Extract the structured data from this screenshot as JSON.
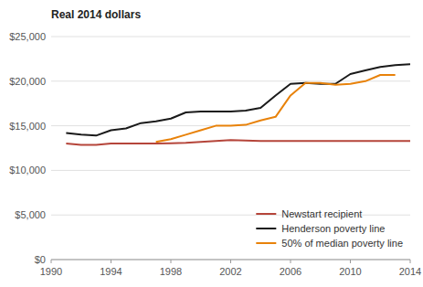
{
  "chart_data": {
    "type": "line",
    "title": "Real 2014 dollars",
    "x": [
      1991,
      1992,
      1993,
      1994,
      1995,
      1996,
      1997,
      1998,
      1999,
      2000,
      2001,
      2002,
      2003,
      2004,
      2005,
      2006,
      2007,
      2008,
      2009,
      2010,
      2011,
      2012,
      2013,
      2014
    ],
    "series": [
      {
        "name": "Newstart recipient",
        "color": "#b5453a",
        "values": [
          13000,
          12850,
          12850,
          13000,
          13000,
          13000,
          13000,
          13050,
          13100,
          13200,
          13300,
          13400,
          13350,
          13300,
          13300,
          13300,
          13300,
          13300,
          13300,
          13300,
          13300,
          13300,
          13300,
          13300
        ]
      },
      {
        "name": "Henderson poverty line",
        "color": "#1a1a1a",
        "values": [
          14200,
          14000,
          13900,
          14500,
          14700,
          15300,
          15500,
          15800,
          16500,
          16600,
          16600,
          16600,
          16700,
          17000,
          18400,
          19700,
          19800,
          19700,
          19700,
          20800,
          21200,
          21600,
          21800,
          21900
        ]
      },
      {
        "name": "50% of median poverty line",
        "color": "#e8820a",
        "values": [
          null,
          null,
          null,
          null,
          null,
          null,
          13200,
          13500,
          14000,
          14500,
          15000,
          15000,
          15100,
          15600,
          16000,
          18400,
          19800,
          19800,
          19600,
          19700,
          20000,
          20700,
          20700,
          null
        ]
      }
    ],
    "xlim": [
      1990,
      2014
    ],
    "ylim": [
      0,
      25000
    ],
    "xticks": [
      1990,
      1994,
      1998,
      2002,
      2006,
      2010,
      2014
    ],
    "yticks": [
      {
        "value": 0,
        "label": "$0"
      },
      {
        "value": 5000,
        "label": "$5,000"
      },
      {
        "value": 10000,
        "label": "$10,000"
      },
      {
        "value": 15000,
        "label": "$15,000"
      },
      {
        "value": 20000,
        "label": "$20,000"
      },
      {
        "value": 25000,
        "label": "$25,000"
      }
    ],
    "grid": true,
    "legend": "lower right"
  }
}
